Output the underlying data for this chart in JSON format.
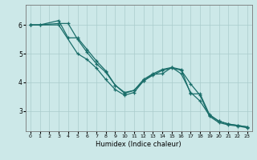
{
  "xlabel": "Humidex (Indice chaleur)",
  "background_color": "#cce8e8",
  "line_color": "#1a6e6a",
  "grid_color": "#aacccc",
  "xlim": [
    -0.5,
    23.5
  ],
  "ylim": [
    2.3,
    6.7
  ],
  "yticks": [
    3,
    4,
    5,
    6
  ],
  "xticks": [
    0,
    1,
    2,
    3,
    4,
    5,
    6,
    7,
    8,
    9,
    10,
    11,
    12,
    13,
    14,
    15,
    16,
    17,
    18,
    19,
    20,
    21,
    22,
    23
  ],
  "line1_x": [
    0,
    1,
    3,
    4,
    5,
    6,
    7,
    8,
    9,
    10,
    11,
    12,
    13,
    14,
    15,
    16,
    17,
    18,
    19,
    20,
    21,
    22,
    23
  ],
  "line1_y": [
    6.0,
    6.0,
    6.15,
    5.55,
    5.55,
    5.15,
    4.75,
    4.4,
    3.9,
    3.65,
    3.72,
    4.1,
    4.3,
    4.45,
    4.52,
    4.45,
    3.6,
    3.6,
    2.88,
    2.65,
    2.55,
    2.5,
    2.45
  ],
  "line2_x": [
    0,
    1,
    3,
    4,
    5,
    6,
    7,
    8,
    9,
    10,
    11,
    12,
    13,
    14,
    15,
    16,
    17,
    18,
    19,
    20,
    21,
    22,
    23
  ],
  "line2_y": [
    6.0,
    6.0,
    6.05,
    6.05,
    5.5,
    5.05,
    4.65,
    4.35,
    3.9,
    3.62,
    3.72,
    4.05,
    4.28,
    4.3,
    4.52,
    4.3,
    3.65,
    3.35,
    2.85,
    2.65,
    2.55,
    2.5,
    2.45
  ],
  "line3_x": [
    0,
    3,
    5,
    6,
    7,
    8,
    9,
    10,
    11,
    12,
    13,
    14,
    15,
    16,
    17,
    18,
    19,
    20,
    21,
    22,
    23
  ],
  "line3_y": [
    6.0,
    6.0,
    5.0,
    4.8,
    4.5,
    4.1,
    3.75,
    3.55,
    3.65,
    4.05,
    4.25,
    4.42,
    4.5,
    4.42,
    3.95,
    3.55,
    2.82,
    2.6,
    2.52,
    2.48,
    2.42
  ]
}
